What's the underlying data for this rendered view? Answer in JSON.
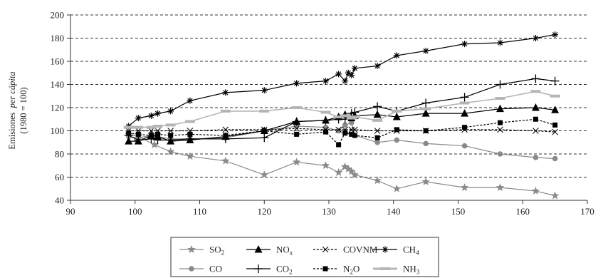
{
  "chart_data": {
    "type": "line",
    "ylabel_main": "Emisiones",
    "ylabel_italic": "per cápita",
    "ylabel_line2": "(1980 = 100)",
    "xlim": [
      90,
      170
    ],
    "ylim": [
      40,
      200
    ],
    "xticks": [
      90,
      100,
      110,
      120,
      130,
      140,
      150,
      160,
      170
    ],
    "yticks": [
      40,
      60,
      80,
      100,
      120,
      140,
      160,
      180,
      200
    ],
    "grid": "horizontal dashed",
    "legend_position": "bottom",
    "series": [
      {
        "name": "SO",
        "sub": "2",
        "color": "#8a8a8a",
        "marker": "star",
        "points": [
          [
            99,
            97
          ],
          [
            100.5,
            95
          ],
          [
            103,
            88
          ],
          [
            105.5,
            82
          ],
          [
            108.5,
            78
          ],
          [
            114,
            74
          ],
          [
            120,
            62
          ],
          [
            125,
            73
          ],
          [
            129.5,
            70
          ],
          [
            131.5,
            64
          ],
          [
            132.5,
            69
          ],
          [
            133,
            67
          ],
          [
            133.5,
            65
          ],
          [
            134,
            62
          ],
          [
            137.5,
            57
          ],
          [
            140.5,
            50
          ],
          [
            145,
            56
          ],
          [
            151,
            51
          ],
          [
            156.5,
            51
          ],
          [
            162,
            48
          ],
          [
            165,
            44
          ]
        ]
      },
      {
        "name": "CO",
        "sub": "",
        "color": "#8a8a8a",
        "marker": "circle",
        "points": [
          [
            99,
            95
          ],
          [
            100.5,
            94
          ],
          [
            102.5,
            96
          ],
          [
            103.5,
            95
          ],
          [
            105.5,
            93
          ],
          [
            108.5,
            93
          ],
          [
            114,
            94
          ],
          [
            120,
            100
          ],
          [
            125,
            104
          ],
          [
            129.5,
            103
          ],
          [
            131.5,
            100
          ],
          [
            132.5,
            105
          ],
          [
            133.5,
            107
          ],
          [
            134,
            96
          ],
          [
            137.5,
            90
          ],
          [
            140.5,
            92
          ],
          [
            145,
            89
          ],
          [
            151,
            87
          ],
          [
            156.5,
            80
          ],
          [
            162,
            77
          ],
          [
            165,
            76
          ]
        ]
      },
      {
        "name": "NO",
        "sub": "x",
        "color": "#000000",
        "marker": "triangle",
        "points": [
          [
            99,
            91
          ],
          [
            100.5,
            91
          ],
          [
            102.5,
            96
          ],
          [
            103.5,
            95
          ],
          [
            105.5,
            91
          ],
          [
            108.5,
            92
          ],
          [
            114,
            95
          ],
          [
            120,
            100
          ],
          [
            125,
            108
          ],
          [
            129.5,
            109
          ],
          [
            131.5,
            112
          ],
          [
            132.5,
            114
          ],
          [
            133.5,
            111
          ],
          [
            134,
            113
          ],
          [
            137.5,
            114
          ],
          [
            140.5,
            112
          ],
          [
            145,
            115
          ],
          [
            151,
            115
          ],
          [
            156.5,
            119
          ],
          [
            162,
            120
          ],
          [
            165,
            118
          ]
        ]
      },
      {
        "name": "CO",
        "sub": "2",
        "color": "#000000",
        "marker": "plus",
        "points": [
          [
            99,
            96
          ],
          [
            100.5,
            92
          ],
          [
            102.5,
            93
          ],
          [
            103.5,
            92
          ],
          [
            105.5,
            92
          ],
          [
            108.5,
            93
          ],
          [
            114,
            93
          ],
          [
            120,
            94
          ],
          [
            125,
            108
          ],
          [
            129.5,
            109
          ],
          [
            131.5,
            110
          ],
          [
            132.5,
            110
          ],
          [
            133.5,
            115
          ],
          [
            134,
            116
          ],
          [
            137.5,
            121
          ],
          [
            140.5,
            117
          ],
          [
            145,
            124
          ],
          [
            151,
            129
          ],
          [
            156.5,
            140
          ],
          [
            162,
            145
          ],
          [
            165,
            143
          ]
        ]
      },
      {
        "name": "COVNM",
        "sub": "",
        "color": "#000000",
        "marker": "x",
        "points": [
          [
            99,
            100
          ],
          [
            100.5,
            100
          ],
          [
            102.5,
            100
          ],
          [
            103.5,
            100
          ],
          [
            105.5,
            100
          ],
          [
            108.5,
            100
          ],
          [
            114,
            101
          ],
          [
            120,
            101
          ],
          [
            125,
            102
          ],
          [
            129.5,
            101
          ],
          [
            131.5,
            101
          ],
          [
            132.5,
            101
          ],
          [
            133.5,
            101
          ],
          [
            134,
            101
          ],
          [
            137.5,
            100
          ],
          [
            140.5,
            100
          ],
          [
            145,
            100
          ],
          [
            151,
            101
          ],
          [
            156.5,
            101
          ],
          [
            162,
            100
          ],
          [
            165,
            99
          ]
        ]
      },
      {
        "name": "N",
        "sub": "2",
        "tail": "O",
        "color": "#000000",
        "marker": "square",
        "points": [
          [
            99,
            98
          ],
          [
            100.5,
            97
          ],
          [
            102.5,
            96
          ],
          [
            103.5,
            97
          ],
          [
            105.5,
            96
          ],
          [
            108.5,
            97
          ],
          [
            114,
            96
          ],
          [
            120,
            100
          ],
          [
            125,
            97
          ],
          [
            129.5,
            99
          ],
          [
            131.5,
            88
          ],
          [
            132.5,
            98
          ],
          [
            133.5,
            97
          ],
          [
            134,
            96
          ],
          [
            137.5,
            94
          ],
          [
            140.5,
            101
          ],
          [
            145,
            100
          ],
          [
            151,
            103
          ],
          [
            156.5,
            107
          ],
          [
            162,
            110
          ],
          [
            165,
            105
          ]
        ]
      },
      {
        "name": "CH",
        "sub": "4",
        "color": "#000000",
        "marker": "asterisk",
        "points": [
          [
            99,
            104
          ],
          [
            100.5,
            111
          ],
          [
            102.5,
            113
          ],
          [
            103.5,
            115
          ],
          [
            105.5,
            117
          ],
          [
            108.5,
            126
          ],
          [
            114,
            133
          ],
          [
            120,
            135
          ],
          [
            125,
            141
          ],
          [
            129.5,
            143
          ],
          [
            131.5,
            149
          ],
          [
            132.5,
            143
          ],
          [
            133,
            150
          ],
          [
            133.5,
            148
          ],
          [
            134,
            154
          ],
          [
            137.5,
            156
          ],
          [
            140.5,
            165
          ],
          [
            145,
            169
          ],
          [
            151,
            175
          ],
          [
            156.5,
            176
          ],
          [
            162,
            180
          ],
          [
            165,
            183
          ]
        ]
      },
      {
        "name": "NH",
        "sub": "3",
        "color": "#b5b5b5",
        "marker": "dash",
        "points": [
          [
            99,
            103
          ],
          [
            100.5,
            103
          ],
          [
            102.5,
            103
          ],
          [
            103.5,
            104
          ],
          [
            105.5,
            105
          ],
          [
            108.5,
            108
          ],
          [
            114,
            117
          ],
          [
            120,
            117
          ],
          [
            125,
            120
          ],
          [
            129.5,
            116
          ],
          [
            131.5,
            112
          ],
          [
            132.5,
            113
          ],
          [
            133.5,
            111
          ],
          [
            134,
            112
          ],
          [
            137.5,
            109
          ],
          [
            140.5,
            117
          ],
          [
            145,
            119
          ],
          [
            151,
            124
          ],
          [
            156.5,
            128
          ],
          [
            162,
            134
          ],
          [
            165,
            130
          ]
        ]
      }
    ]
  }
}
